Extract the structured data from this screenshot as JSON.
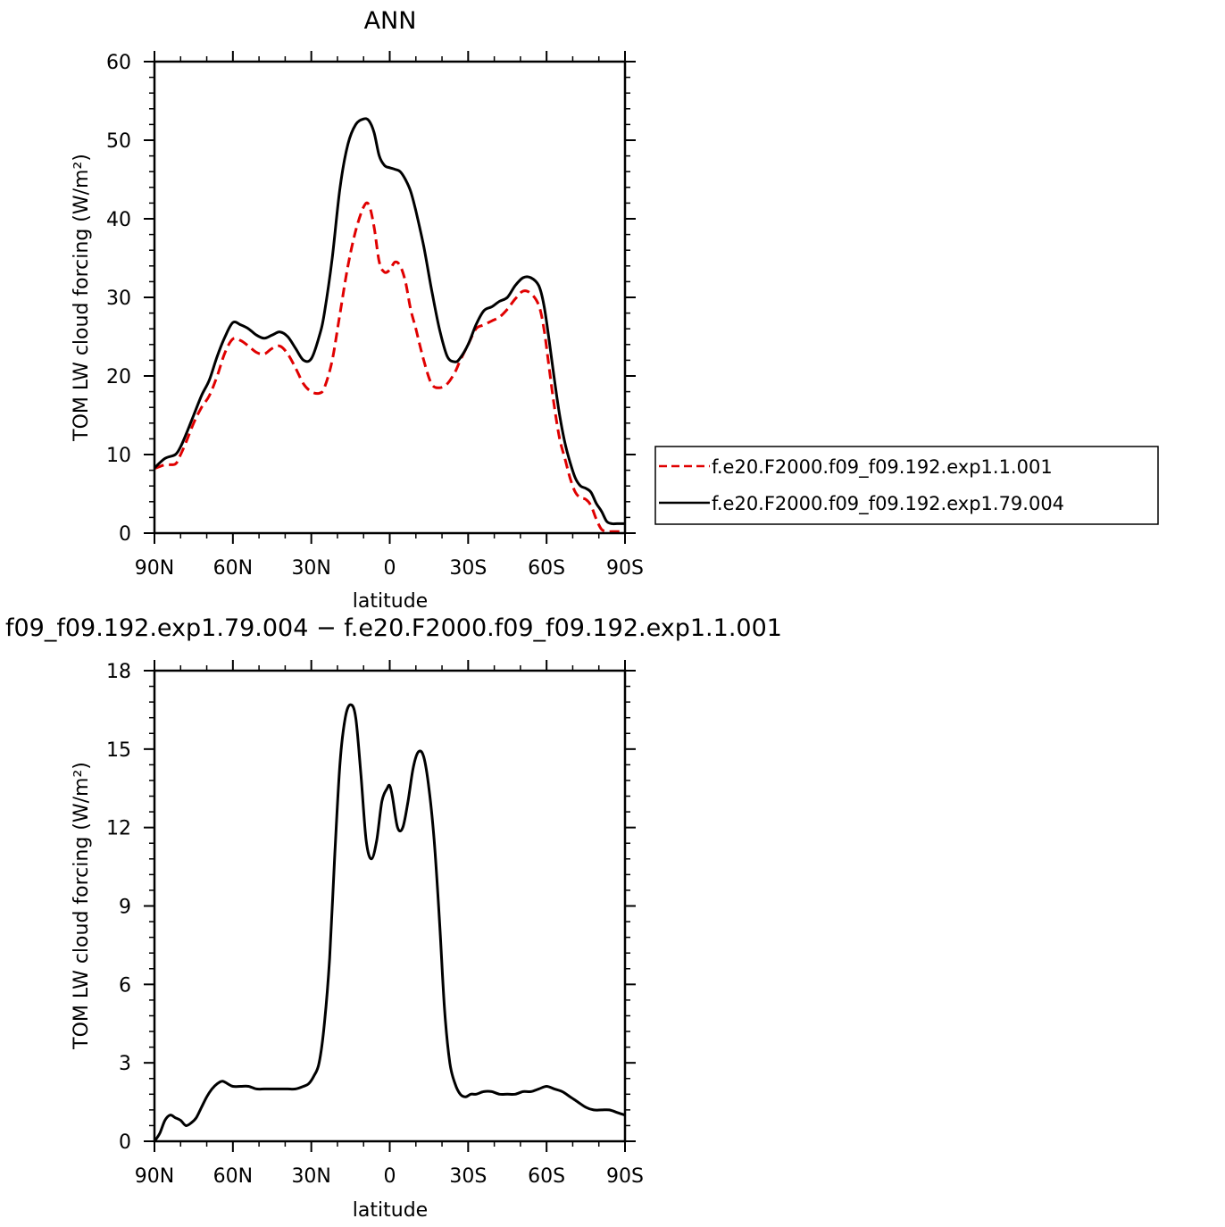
{
  "chart_data": [
    {
      "type": "line",
      "title": "ANN",
      "xlabel": "latitude",
      "ylabel": "TOM LW cloud forcing (W/m²)",
      "xlim": [
        90,
        -90
      ],
      "ylim": [
        0,
        60
      ],
      "xticks": [
        90,
        60,
        30,
        0,
        -30,
        -60,
        -90
      ],
      "xtick_labels": [
        "90N",
        "60N",
        "30N",
        "0",
        "30S",
        "60S",
        "90S"
      ],
      "yticks": [
        0,
        10,
        20,
        30,
        40,
        50,
        60
      ],
      "ytick_labels": [
        "0",
        "10",
        "20",
        "30",
        "40",
        "50",
        "60"
      ],
      "legend_position": "right",
      "series": [
        {
          "name": "f.e20.F2000.f09_f09.192.exp1.1.001",
          "color": "#e00000",
          "dash": true,
          "x": [
            90,
            86,
            82,
            80,
            78,
            75,
            72,
            69,
            66,
            63,
            60,
            57,
            54,
            51,
            48,
            45,
            42,
            39,
            36,
            33,
            30,
            27,
            25,
            22,
            19,
            16,
            13,
            10,
            8,
            6,
            4,
            2,
            0,
            -2,
            -4,
            -6,
            -8,
            -10,
            -13,
            -16,
            -19,
            -22,
            -25,
            -27,
            -30,
            -33,
            -36,
            -39,
            -42,
            -45,
            -48,
            -51,
            -54,
            -57,
            -59,
            -61,
            -63,
            -65,
            -67,
            -69,
            -71,
            -73,
            -75,
            -77,
            -79,
            -81,
            -83,
            -85,
            -87,
            -90
          ],
          "y": [
            8.2,
            8.7,
            8.8,
            10.0,
            11.5,
            14.0,
            16.0,
            17.5,
            20.0,
            23.0,
            24.7,
            24.5,
            23.8,
            23.0,
            22.8,
            23.5,
            23.8,
            22.8,
            21.0,
            19.0,
            18.0,
            17.8,
            18.5,
            22.0,
            28.0,
            34.0,
            38.5,
            41.5,
            41.8,
            39.0,
            34.5,
            33.2,
            33.5,
            34.5,
            34.0,
            32.0,
            28.5,
            26.0,
            22.0,
            19.0,
            18.5,
            19.0,
            20.5,
            22.0,
            24.0,
            26.0,
            26.5,
            27.0,
            27.5,
            28.5,
            29.8,
            30.8,
            30.5,
            29.0,
            26.0,
            21.0,
            16.0,
            12.0,
            9.5,
            7.0,
            5.2,
            4.5,
            4.3,
            3.5,
            1.8,
            0.5,
            0.2,
            0.2,
            0.2,
            0.2
          ]
        },
        {
          "name": "f.e20.F2000.f09_f09.192.exp1.79.004",
          "color": "#000000",
          "dash": false,
          "x": [
            90,
            86,
            82,
            80,
            78,
            75,
            72,
            69,
            66,
            63,
            60,
            57,
            54,
            51,
            48,
            45,
            42,
            39,
            36,
            33,
            30,
            27,
            25,
            22,
            19,
            16,
            13,
            10,
            8,
            6,
            4,
            2,
            0,
            -2,
            -4,
            -6,
            -8,
            -10,
            -13,
            -16,
            -19,
            -22,
            -25,
            -27,
            -30,
            -33,
            -36,
            -39,
            -42,
            -45,
            -48,
            -51,
            -54,
            -57,
            -59,
            -61,
            -63,
            -65,
            -67,
            -69,
            -71,
            -73,
            -75,
            -77,
            -79,
            -81,
            -83,
            -85,
            -87,
            -90
          ],
          "y": [
            8.3,
            9.5,
            10.0,
            11.0,
            12.5,
            15.0,
            17.5,
            19.5,
            22.5,
            25.0,
            26.8,
            26.5,
            26.0,
            25.2,
            24.8,
            25.2,
            25.6,
            25.0,
            23.5,
            22.0,
            22.2,
            25.0,
            28.0,
            35.0,
            44.0,
            49.5,
            52.0,
            52.7,
            52.5,
            51.0,
            48.0,
            46.8,
            46.5,
            46.3,
            46.0,
            45.0,
            43.5,
            41.0,
            36.5,
            31.0,
            26.0,
            22.5,
            21.8,
            22.3,
            24.0,
            26.5,
            28.3,
            28.8,
            29.5,
            30.0,
            31.5,
            32.5,
            32.5,
            31.5,
            29.0,
            24.5,
            19.5,
            15.0,
            11.5,
            9.0,
            7.0,
            6.0,
            5.7,
            5.2,
            3.8,
            2.8,
            1.5,
            1.2,
            1.2,
            1.2
          ]
        }
      ]
    },
    {
      "type": "line",
      "title": "f09_f09.192.exp1.79.004 − f.e20.F2000.f09_f09.192.exp1.1.001",
      "xlabel": "latitude",
      "ylabel": "TOM LW cloud forcing (W/m²)",
      "xlim": [
        90,
        -90
      ],
      "ylim": [
        0,
        18
      ],
      "xticks": [
        90,
        60,
        30,
        0,
        -30,
        -60,
        -90
      ],
      "xtick_labels": [
        "90N",
        "60N",
        "30N",
        "0",
        "30S",
        "60S",
        "90S"
      ],
      "yticks": [
        0,
        3,
        6,
        9,
        12,
        15,
        18
      ],
      "ytick_labels": [
        "0",
        "3",
        "6",
        "9",
        "12",
        "15",
        "18"
      ],
      "series": [
        {
          "color": "#000000",
          "dash": false,
          "x": [
            90,
            88,
            86,
            84,
            82,
            80,
            78,
            76,
            74,
            72,
            70,
            68,
            66,
            64,
            62,
            60,
            57,
            54,
            51,
            48,
            45,
            42,
            39,
            36,
            33,
            31,
            29,
            27,
            25,
            23,
            21,
            19,
            17,
            15,
            13,
            11,
            9,
            7,
            5,
            3,
            1,
            0,
            -1,
            -3,
            -5,
            -7,
            -9,
            -11,
            -13,
            -15,
            -17,
            -19,
            -21,
            -23,
            -25,
            -27,
            -29,
            -31,
            -33,
            -36,
            -39,
            -42,
            -45,
            -48,
            -51,
            -54,
            -57,
            -60,
            -63,
            -66,
            -69,
            -72,
            -75,
            -78,
            -81,
            -84,
            -87,
            -90
          ],
          "y": [
            0,
            0.3,
            0.8,
            1.0,
            0.9,
            0.8,
            0.6,
            0.7,
            0.9,
            1.3,
            1.7,
            2.0,
            2.2,
            2.3,
            2.2,
            2.1,
            2.1,
            2.1,
            2.0,
            2.0,
            2.0,
            2.0,
            2.0,
            2.0,
            2.1,
            2.2,
            2.5,
            3.0,
            4.5,
            7.0,
            11.0,
            14.5,
            16.2,
            16.7,
            16.2,
            14.0,
            11.5,
            10.8,
            11.5,
            13.0,
            13.5,
            13.6,
            13.2,
            12.0,
            12.0,
            13.0,
            14.3,
            14.9,
            14.7,
            13.5,
            11.5,
            8.5,
            5.0,
            3.0,
            2.2,
            1.8,
            1.7,
            1.8,
            1.8,
            1.9,
            1.9,
            1.8,
            1.8,
            1.8,
            1.9,
            1.9,
            2.0,
            2.1,
            2.0,
            1.9,
            1.7,
            1.5,
            1.3,
            1.2,
            1.2,
            1.2,
            1.1,
            1.0
          ]
        }
      ]
    }
  ]
}
